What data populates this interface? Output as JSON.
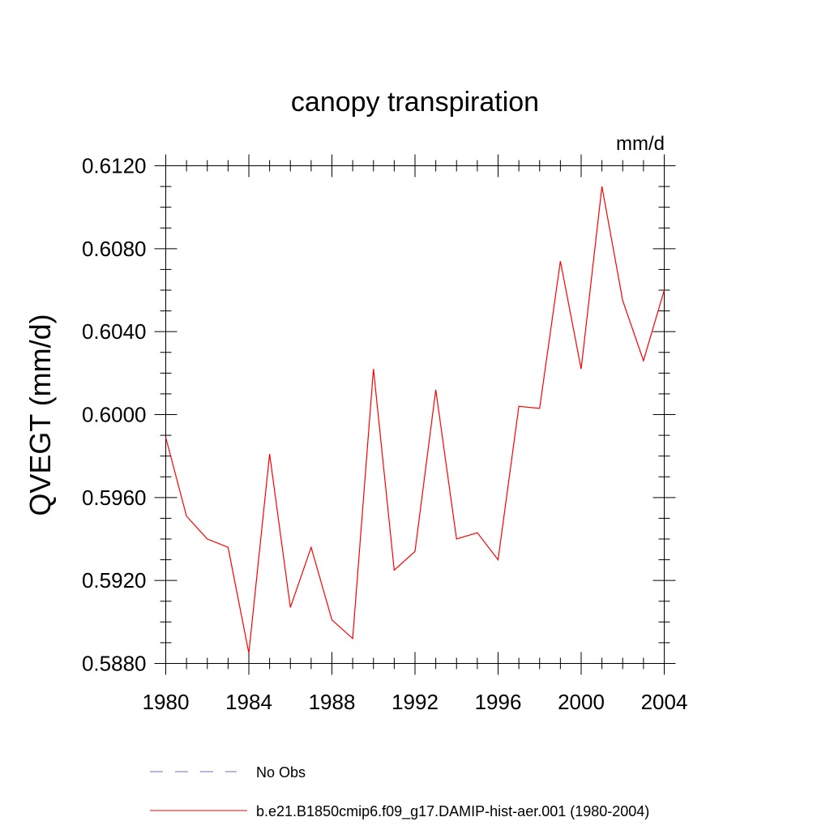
{
  "chart_data": {
    "type": "line",
    "title": "canopy transpiration",
    "units_label": "mm/d",
    "ylabel": "QVEGT  (mm/d)",
    "xlabel": "",
    "xlim": [
      1980,
      2004
    ],
    "ylim": [
      0.588,
      0.612
    ],
    "x_ticks": [
      1980,
      1984,
      1988,
      1992,
      1996,
      2000,
      2004
    ],
    "x_tick_labels": [
      "1980",
      "1984",
      "1988",
      "1992",
      "1996",
      "2000",
      "2004"
    ],
    "y_ticks": [
      0.588,
      0.592,
      0.596,
      0.6,
      0.604,
      0.608,
      0.612
    ],
    "y_tick_labels": [
      "0.5880",
      "0.5920",
      "0.5960",
      "0.6000",
      "0.6040",
      "0.6080",
      "0.6120"
    ],
    "y_minor_step": 0.001,
    "x_minor_step": 1,
    "grid": false,
    "legend_position": "bottom",
    "legend": [
      {
        "label": "No Obs",
        "color": "#7b68c8",
        "style": "dashed"
      },
      {
        "label": "b.e21.B1850cmip6.f09_g17.DAMIP-hist-aer.001 (1980-2004)",
        "color": "#ff0000",
        "style": "solid"
      }
    ],
    "series": [
      {
        "name": "b.e21.B1850cmip6.f09_g17.DAMIP-hist-aer.001 (1980-2004)",
        "color": "#ff0000",
        "x": [
          1980,
          1981,
          1982,
          1983,
          1984,
          1985,
          1986,
          1987,
          1988,
          1989,
          1990,
          1991,
          1992,
          1993,
          1994,
          1995,
          1996,
          1997,
          1998,
          1999,
          2000,
          2001,
          2002,
          2003,
          2004
        ],
        "values": [
          0.5989,
          0.5951,
          0.594,
          0.5936,
          0.5885,
          0.5981,
          0.5907,
          0.5936,
          0.5901,
          0.5892,
          0.6022,
          0.5925,
          0.5934,
          0.6012,
          0.594,
          0.5943,
          0.593,
          0.6004,
          0.6003,
          0.6074,
          0.6022,
          0.611,
          0.6055,
          0.6026,
          0.606
        ]
      }
    ]
  }
}
